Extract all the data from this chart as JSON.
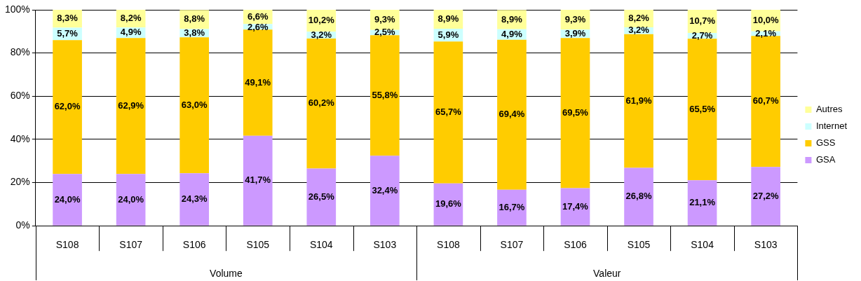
{
  "chart_data": {
    "type": "bar",
    "stacked": true,
    "categories": [
      "S108",
      "S107",
      "S106",
      "S105",
      "S104",
      "S103",
      "S108",
      "S107",
      "S106",
      "S105",
      "S104",
      "S103"
    ],
    "annotations": [
      "Volume",
      "Valeur"
    ],
    "series": [
      {
        "name": "GSA",
        "color": "#cc99ff",
        "values": [
          24.0,
          24.0,
          24.3,
          41.7,
          26.5,
          32.4,
          19.6,
          16.7,
          17.4,
          26.8,
          21.1,
          27.2
        ],
        "value_labels": [
          "24,0%",
          "24,0%",
          "24,3%",
          "41,7%",
          "26,5%",
          "32,4%",
          "19,6%",
          "16,7%",
          "17,4%",
          "26,8%",
          "21,1%",
          "27,2%"
        ]
      },
      {
        "name": "GSS",
        "color": "#ffcc00",
        "values": [
          62.0,
          62.9,
          63.0,
          49.1,
          60.2,
          55.8,
          65.7,
          69.4,
          69.5,
          61.9,
          65.5,
          60.7
        ],
        "value_labels": [
          "62,0%",
          "62,9%",
          "63,0%",
          "49,1%",
          "60,2%",
          "55,8%",
          "65,7%",
          "69,4%",
          "69,5%",
          "61,9%",
          "65,5%",
          "60,7%"
        ]
      },
      {
        "name": "Internet",
        "color": "#ccffff",
        "values": [
          5.7,
          4.9,
          3.8,
          2.6,
          3.2,
          2.5,
          5.9,
          4.9,
          3.9,
          3.2,
          2.7,
          2.1
        ],
        "value_labels": [
          "5,7%",
          "4,9%",
          "3,8%",
          "2,6%",
          "3,2%",
          "2,5%",
          "5,9%",
          "4,9%",
          "3,9%",
          "3,2%",
          "2,7%",
          "2,1%"
        ]
      },
      {
        "name": "Autres",
        "color": "#ffff99",
        "values": [
          8.3,
          8.2,
          8.8,
          6.6,
          10.2,
          9.3,
          8.9,
          8.9,
          9.3,
          8.2,
          10.7,
          10.0
        ],
        "value_labels": [
          "8,3%",
          "8,2%",
          "8,8%",
          "6,6%",
          "10,2%",
          "9,3%",
          "8,9%",
          "8,9%",
          "9,3%",
          "8,2%",
          "10,7%",
          "10,0%"
        ]
      }
    ],
    "ylim": [
      0,
      100
    ],
    "yticks": [
      {
        "value": 0,
        "label": "0%"
      },
      {
        "value": 20,
        "label": "20%"
      },
      {
        "value": 40,
        "label": "40%"
      },
      {
        "value": 60,
        "label": "60%"
      },
      {
        "value": 80,
        "label": "80%"
      },
      {
        "value": 100,
        "label": "100%"
      }
    ],
    "grid": "y",
    "legend": "right"
  }
}
